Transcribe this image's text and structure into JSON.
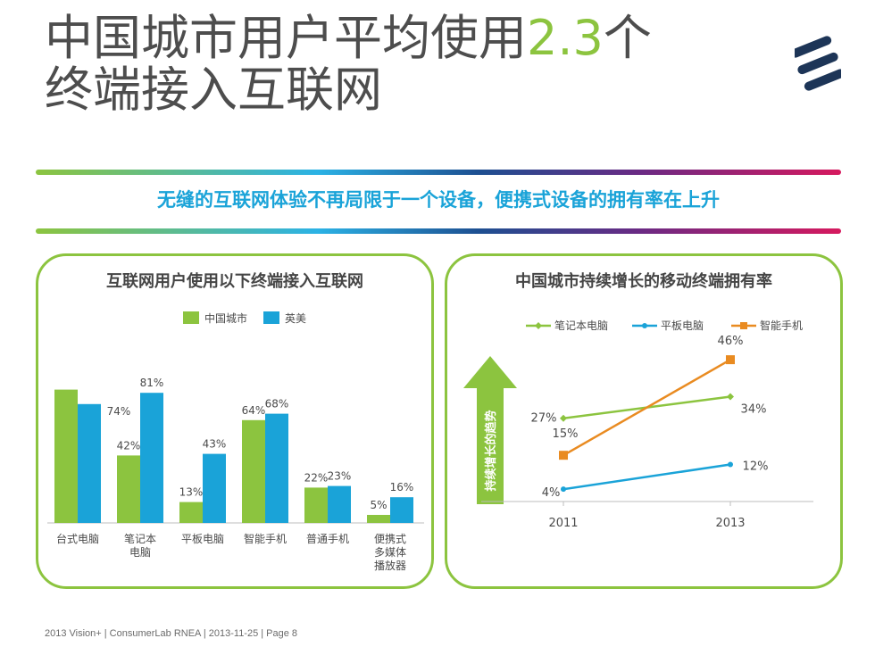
{
  "slide": {
    "title_line1_prefix": "中国城市用户平均使用",
    "title_line1_highlight": "2.3",
    "title_line1_suffix": "个",
    "title_line2": "终端接入互联网",
    "subtitle": "无缝的互联网体验不再局限于一个设备，便携式设备的拥有率在上升",
    "footer": "2013 Vision+  |  ConsumerLab RNEA  |  2013-11-25  |  Page 8",
    "colors": {
      "green": "#8cc43f",
      "blue": "#1aa3d8",
      "orange": "#e98b21",
      "text": "#4d4d4d"
    }
  },
  "chart_data": [
    {
      "type": "bar",
      "title": "互联网用户使用以下终端接入互联网",
      "categories": [
        [
          "台式电脑"
        ],
        [
          "笔记本",
          "电脑"
        ],
        [
          "平板电脑"
        ],
        [
          "智能手机"
        ],
        [
          "普通手机"
        ],
        [
          "便携式",
          "多媒体",
          "播放器"
        ]
      ],
      "series": [
        {
          "name": "中国城市",
          "color": "#8cc43f",
          "values": [
            83,
            42,
            13,
            64,
            22,
            5
          ],
          "labels": [
            "",
            "42%",
            "13%",
            "64%",
            "22%",
            "5%"
          ]
        },
        {
          "name": "英美",
          "color": "#1aa3d8",
          "values": [
            74,
            81,
            43,
            68,
            23,
            16
          ],
          "labels": [
            "74%",
            "81%",
            "43%",
            "68%",
            "23%",
            "16%"
          ]
        }
      ],
      "ylim": [
        0,
        100
      ],
      "legend": "top-center"
    },
    {
      "type": "line",
      "title": "中国城市持续增长的移动终端拥有率",
      "x": [
        "2011",
        "2013"
      ],
      "series": [
        {
          "name": "笔记本电脑",
          "color": "#8cc43f",
          "marker": "diamond",
          "values": [
            27,
            34
          ],
          "labels": [
            "27%",
            "34%"
          ]
        },
        {
          "name": "平板电脑",
          "color": "#1aa3d8",
          "marker": "circle",
          "values": [
            4,
            12
          ],
          "labels": [
            "4%",
            "12%"
          ]
        },
        {
          "name": "智能手机",
          "color": "#e98b21",
          "marker": "square",
          "values": [
            15,
            46
          ],
          "labels": [
            "15%",
            "46%"
          ]
        }
      ],
      "annotation": "持续增长的趋势",
      "ylim": [
        0,
        55
      ],
      "legend": "top"
    }
  ]
}
